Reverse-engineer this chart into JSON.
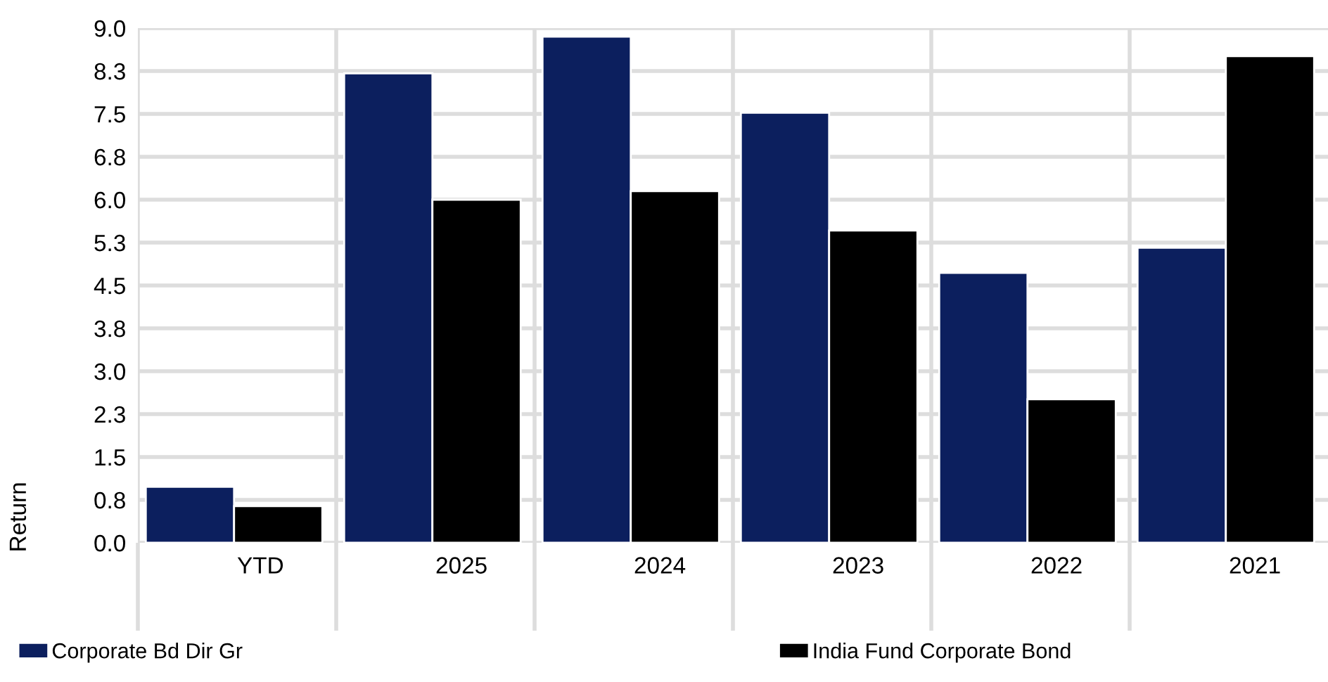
{
  "chart_data": {
    "type": "bar",
    "ylabel": "Return",
    "categories": [
      "YTD",
      "2025",
      "2024",
      "2023",
      "2022",
      "2021"
    ],
    "series": [
      {
        "name": "Corporate Bd Dir Gr",
        "color": "#0c1f5e",
        "values": [
          0.98,
          8.21,
          8.85,
          7.52,
          4.72,
          5.16
        ]
      },
      {
        "name": "India Fund Corporate Bond",
        "color": "#000000",
        "values": [
          0.64,
          6.0,
          6.15,
          5.46,
          2.51,
          8.51
        ]
      }
    ],
    "ylim": [
      0,
      9
    ],
    "yticks": [
      {
        "value": 0,
        "label": "0.0"
      },
      {
        "value": 0.75,
        "label": "0.8"
      },
      {
        "value": 1.5,
        "label": "1.5"
      },
      {
        "value": 2.25,
        "label": "2.3"
      },
      {
        "value": 3,
        "label": "3.0"
      },
      {
        "value": 3.75,
        "label": "3.8"
      },
      {
        "value": 4.5,
        "label": "4.5"
      },
      {
        "value": 5.25,
        "label": "5.3"
      },
      {
        "value": 6,
        "label": "6.0"
      },
      {
        "value": 6.75,
        "label": "6.8"
      },
      {
        "value": 7.5,
        "label": "7.5"
      },
      {
        "value": 8.25,
        "label": "8.3"
      },
      {
        "value": 9,
        "label": "9.0"
      }
    ],
    "grid": true,
    "legend": "bottom"
  }
}
